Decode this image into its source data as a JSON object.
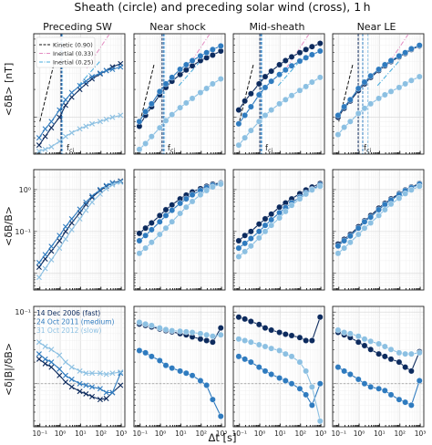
{
  "figure": {
    "title": "Sheath (circle) and preceding solar wind (cross), 1 h",
    "xlabel": "Δt [s]"
  },
  "panel_labels": {
    "fci": "f",
    "fci_sub": "ci"
  },
  "colors": {
    "fast": "#0d2b5e",
    "medium": "#2f7bbf",
    "slow": "#8cc0e2",
    "kinetic": "#111111",
    "inertial_033": "#e38cc2",
    "inertial_025": "#49aede",
    "reference_line": "#9a9a9a"
  },
  "chart_data": {
    "type": "line",
    "layout": "3x4 grid of log-log panels",
    "columns": [
      "Preceding SW",
      "Near shock",
      "Mid-sheath",
      "Near LE"
    ],
    "x_axis": {
      "label": "Δt [s]",
      "scale": "log",
      "ticks": [
        "10⁻¹",
        "10⁰",
        "10¹",
        "10²",
        "10³"
      ],
      "range": [
        0.05,
        1500
      ]
    },
    "rows": [
      {
        "ylabel": "<δB> [nT]",
        "scale": "log",
        "y_ticks": [],
        "range": [
          0.4,
          8
        ]
      },
      {
        "ylabel": "<δB/B>",
        "scale": "log",
        "y_ticks": [
          "10⁻¹",
          "10⁰"
        ],
        "range": [
          0.004,
          3
        ]
      },
      {
        "ylabel": "<δ|B|/δB>",
        "scale": "log",
        "y_ticks": [
          "10⁻¹"
        ],
        "range": [
          0.025,
          1.2
        ],
        "reference_line": 0.1
      }
    ],
    "x": [
      0.092,
      0.184,
      0.368,
      0.92,
      1.84,
      3.68,
      9.2,
      18.4,
      36.8,
      92,
      184,
      368,
      920
    ],
    "events": [
      {
        "label": "14 Dec 2006 (fast)",
        "color": "#0d2b5e"
      },
      {
        "label": "24 Oct 2011 (medium)",
        "color": "#2f7bbf"
      },
      {
        "label": "31 Oct 2012 (slow)",
        "color": "#8cc0e2"
      }
    ],
    "slope_legend": [
      {
        "label": "Kinetic (0.90)",
        "color": "#111111",
        "dash": "dashed",
        "slope": 0.9
      },
      {
        "label": "Inertial (0.33)",
        "color": "#e38cc2",
        "dash": "dashdot",
        "slope": 0.33
      },
      {
        "label": "Inertial (0.25)",
        "color": "#49aede",
        "dash": "dashdot",
        "slope": 0.25
      }
    ],
    "fci_markers_s": [
      [
        1.1,
        1.2,
        1.3
      ],
      [
        1.2,
        1.4,
        1.6
      ],
      [
        1.0,
        1.15,
        1.3
      ],
      [
        0.9,
        1.5,
        2.7
      ]
    ],
    "panels": [
      [
        {
          "marker": "cross",
          "series": [
            [
              0.5,
              0.62,
              0.77,
              1.0,
              1.35,
              1.65,
              2.0,
              2.3,
              2.6,
              2.95,
              3.2,
              3.5,
              3.8
            ],
            [
              0.6,
              0.75,
              0.9,
              1.2,
              1.55,
              1.85,
              2.2,
              2.45,
              2.75,
              3.0,
              3.2,
              3.3,
              3.5
            ],
            [
              0.43,
              0.45,
              0.48,
              0.55,
              0.62,
              0.68,
              0.75,
              0.8,
              0.85,
              0.9,
              0.95,
              1.0,
              1.05
            ]
          ]
        },
        {
          "marker": "circle",
          "series": [
            [
              0.8,
              1.05,
              1.3,
              1.75,
              2.1,
              2.45,
              2.9,
              3.25,
              3.6,
              4.1,
              4.4,
              4.7,
              5.2
            ],
            [
              0.9,
              1.15,
              1.4,
              1.9,
              2.3,
              2.7,
              3.3,
              3.7,
              4.1,
              4.6,
              5.0,
              5.4,
              5.9
            ],
            [
              0.45,
              0.52,
              0.62,
              0.77,
              0.92,
              1.07,
              1.27,
              1.43,
              1.6,
              1.85,
              2.05,
              2.3,
              2.6
            ]
          ]
        },
        {
          "marker": "circle",
          "series": [
            [
              1.2,
              1.5,
              1.8,
              2.3,
              2.75,
              3.15,
              3.7,
              4.1,
              4.5,
              5.0,
              5.4,
              5.8,
              6.3
            ],
            [
              0.85,
              1.05,
              1.3,
              1.75,
              2.1,
              2.45,
              2.9,
              3.25,
              3.6,
              4.05,
              4.4,
              4.75,
              5.2
            ],
            [
              0.5,
              0.6,
              0.72,
              0.9,
              1.05,
              1.2,
              1.4,
              1.55,
              1.72,
              1.95,
              2.15,
              2.4,
              2.7
            ]
          ]
        },
        {
          "marker": "circle",
          "series": [
            [
              1.0,
              1.25,
              1.5,
              1.95,
              2.3,
              2.7,
              3.2,
              3.6,
              4.0,
              4.5,
              4.9,
              5.4,
              5.9
            ],
            [
              1.05,
              1.3,
              1.55,
              2.05,
              2.4,
              2.8,
              3.3,
              3.7,
              4.1,
              4.6,
              5.0,
              5.5,
              6.0
            ],
            [
              0.65,
              0.78,
              0.9,
              1.1,
              1.25,
              1.4,
              1.6,
              1.75,
              1.9,
              2.1,
              2.3,
              2.5,
              2.75
            ]
          ]
        }
      ],
      [
        {
          "marker": "cross",
          "series": [
            [
              0.014,
              0.022,
              0.034,
              0.06,
              0.1,
              0.16,
              0.28,
              0.44,
              0.65,
              0.95,
              1.2,
              1.45,
              1.6
            ],
            [
              0.018,
              0.028,
              0.044,
              0.08,
              0.13,
              0.2,
              0.34,
              0.5,
              0.7,
              1.0,
              1.25,
              1.45,
              1.55
            ],
            [
              0.008,
              0.013,
              0.021,
              0.04,
              0.066,
              0.11,
              0.2,
              0.32,
              0.5,
              0.78,
              1.05,
              1.3,
              1.5
            ]
          ]
        },
        {
          "marker": "circle",
          "series": [
            [
              0.09,
              0.12,
              0.16,
              0.24,
              0.33,
              0.43,
              0.6,
              0.74,
              0.88,
              1.05,
              1.2,
              1.35,
              1.45
            ],
            [
              0.06,
              0.08,
              0.11,
              0.17,
              0.24,
              0.32,
              0.47,
              0.6,
              0.75,
              0.95,
              1.12,
              1.27,
              1.4
            ],
            [
              0.03,
              0.04,
              0.055,
              0.085,
              0.12,
              0.17,
              0.27,
              0.38,
              0.52,
              0.75,
              0.95,
              1.15,
              1.35
            ]
          ]
        },
        {
          "marker": "circle",
          "series": [
            [
              0.06,
              0.08,
              0.1,
              0.15,
              0.2,
              0.26,
              0.38,
              0.48,
              0.6,
              0.8,
              0.98,
              1.15,
              1.4
            ],
            [
              0.04,
              0.052,
              0.068,
              0.1,
              0.14,
              0.19,
              0.28,
              0.37,
              0.48,
              0.66,
              0.84,
              1.02,
              1.3
            ],
            [
              0.025,
              0.033,
              0.045,
              0.07,
              0.1,
              0.14,
              0.21,
              0.3,
              0.42,
              0.6,
              0.78,
              0.98,
              1.2
            ]
          ]
        },
        {
          "marker": "circle",
          "series": [
            [
              0.05,
              0.065,
              0.085,
              0.13,
              0.18,
              0.24,
              0.36,
              0.47,
              0.6,
              0.8,
              0.98,
              1.15,
              1.4
            ],
            [
              0.045,
              0.06,
              0.078,
              0.12,
              0.17,
              0.22,
              0.33,
              0.44,
              0.56,
              0.76,
              0.94,
              1.1,
              1.35
            ],
            [
              0.03,
              0.04,
              0.055,
              0.085,
              0.12,
              0.16,
              0.24,
              0.33,
              0.45,
              0.62,
              0.8,
              0.98,
              1.2
            ]
          ]
        }
      ],
      [
        {
          "marker": "cross",
          "series": [
            [
              0.22,
              0.19,
              0.17,
              0.13,
              0.105,
              0.09,
              0.078,
              0.072,
              0.066,
              0.06,
              0.062,
              0.075,
              0.095
            ],
            [
              0.26,
              0.22,
              0.2,
              0.16,
              0.13,
              0.115,
              0.1,
              0.095,
              0.09,
              0.085,
              0.075,
              0.075,
              0.14
            ],
            [
              0.38,
              0.33,
              0.3,
              0.25,
              0.2,
              0.17,
              0.15,
              0.14,
              0.14,
              0.14,
              0.135,
              0.14,
              0.145
            ]
          ]
        },
        {
          "marker": "circle",
          "series": [
            [
              0.68,
              0.65,
              0.62,
              0.58,
              0.55,
              0.53,
              0.5,
              0.48,
              0.45,
              0.42,
              0.4,
              0.38,
              0.6
            ],
            [
              0.29,
              0.27,
              0.24,
              0.21,
              0.18,
              0.165,
              0.15,
              0.14,
              0.13,
              0.11,
              0.095,
              0.06,
              0.035
            ],
            [
              0.72,
              0.68,
              0.65,
              0.6,
              0.57,
              0.55,
              0.54,
              0.53,
              0.52,
              0.5,
              0.48,
              0.46,
              0.48
            ]
          ]
        },
        {
          "marker": "circle",
          "series": [
            [
              0.85,
              0.8,
              0.74,
              0.67,
              0.6,
              0.56,
              0.52,
              0.49,
              0.47,
              0.44,
              0.4,
              0.4,
              0.85
            ],
            [
              0.24,
              0.22,
              0.2,
              0.17,
              0.15,
              0.135,
              0.12,
              0.11,
              0.1,
              0.085,
              0.07,
              0.05,
              0.1
            ],
            [
              0.42,
              0.4,
              0.38,
              0.35,
              0.33,
              0.31,
              0.29,
              0.26,
              0.24,
              0.2,
              0.15,
              0.09,
              0.03
            ]
          ]
        },
        {
          "marker": "circle",
          "series": [
            [
              0.52,
              0.48,
              0.44,
              0.38,
              0.34,
              0.3,
              0.26,
              0.24,
              0.22,
              0.2,
              0.17,
              0.15,
              0.28
            ],
            [
              0.17,
              0.15,
              0.135,
              0.115,
              0.1,
              0.09,
              0.085,
              0.08,
              0.07,
              0.06,
              0.055,
              0.05,
              0.11
            ],
            [
              0.56,
              0.52,
              0.5,
              0.46,
              0.42,
              0.39,
              0.36,
              0.33,
              0.3,
              0.27,
              0.26,
              0.26,
              0.27
            ]
          ]
        }
      ]
    ]
  }
}
